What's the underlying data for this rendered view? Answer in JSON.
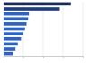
{
  "chart_data": {
    "type": "bar",
    "orientation": "horizontal",
    "categories": [
      null,
      null,
      null,
      null,
      null,
      null,
      null,
      null,
      null,
      null,
      null
    ],
    "values": [
      85,
      71,
      32,
      31,
      29,
      27,
      25,
      22,
      18,
      15,
      12
    ],
    "colors": [
      "#1b2a55",
      "#223d7a",
      "#2f63c2",
      "#2f63c2",
      "#2f63c2",
      "#2f63c2",
      "#2f63c2",
      "#2f63c2",
      "#2f63c2",
      "#2f63c2",
      "#2f63c2"
    ],
    "xlim": [
      0,
      100
    ],
    "xticks": [
      0,
      25,
      50,
      75,
      100
    ],
    "grid": true,
    "tick_labels": false
  }
}
